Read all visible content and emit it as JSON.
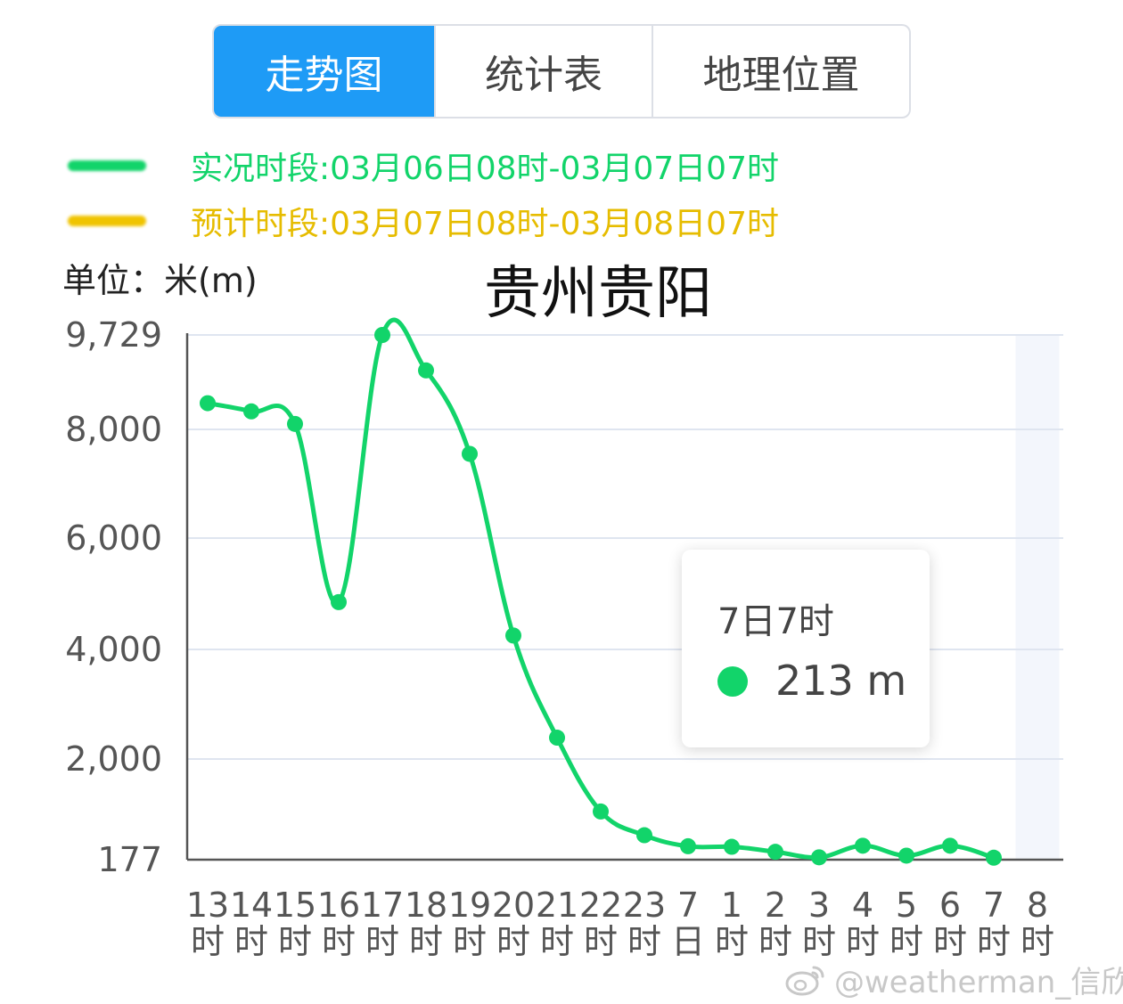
{
  "tabs": [
    {
      "label": "走势图",
      "active": true
    },
    {
      "label": "统计表",
      "active": false
    },
    {
      "label": "地理位置",
      "active": false
    }
  ],
  "legend": [
    {
      "label": "实况时段:03月06日08时-03月07日07时",
      "color": "#12d46a"
    },
    {
      "label": "预计时段:03月07日08时-03月08日07时",
      "color": "#f0c400"
    }
  ],
  "unit_label": "单位：米(m)",
  "city_title": "贵州贵阳",
  "tooltip": {
    "title": "7日7时",
    "value": "213 m",
    "color": "#12d46a"
  },
  "watermark": "@weatherman_信欣",
  "colors": {
    "actual_line": "#12d46a",
    "forecast_line": "#f0c400",
    "tab_active": "#1e9bf6",
    "grid": "#dfe5f0",
    "axis": "#555555",
    "highlight_band": "#f3f6fc"
  },
  "chart_data": {
    "type": "line",
    "title": "贵州贵阳",
    "ylabel": "单位：米(m)",
    "y_ticks": [
      "9,729",
      "8,000",
      "6,000",
      "4,000",
      "2,000",
      "177"
    ],
    "y_tick_values": [
      9729,
      8000,
      6000,
      4000,
      2000,
      177
    ],
    "ylim": [
      177,
      9729
    ],
    "grid": true,
    "highlighted_category_index": 19,
    "categories": [
      {
        "top": "13",
        "bottom": "时"
      },
      {
        "top": "14",
        "bottom": "时"
      },
      {
        "top": "15",
        "bottom": "时"
      },
      {
        "top": "16",
        "bottom": "时"
      },
      {
        "top": "17",
        "bottom": "时"
      },
      {
        "top": "18",
        "bottom": "时"
      },
      {
        "top": "19",
        "bottom": "时"
      },
      {
        "top": "20",
        "bottom": "时"
      },
      {
        "top": "21",
        "bottom": "时"
      },
      {
        "top": "22",
        "bottom": "时"
      },
      {
        "top": "23",
        "bottom": "时"
      },
      {
        "top": "7",
        "bottom": "日"
      },
      {
        "top": "1",
        "bottom": "时"
      },
      {
        "top": "2",
        "bottom": "时"
      },
      {
        "top": "3",
        "bottom": "时"
      },
      {
        "top": "4",
        "bottom": "时"
      },
      {
        "top": "5",
        "bottom": "时"
      },
      {
        "top": "6",
        "bottom": "时"
      },
      {
        "top": "7",
        "bottom": "时"
      },
      {
        "top": "8",
        "bottom": "时"
      }
    ],
    "series": [
      {
        "values": [
          8480,
          8330,
          8100,
          4850,
          9729,
          9080,
          7550,
          4250,
          2390,
          1050,
          620,
          420,
          410,
          320,
          220,
          430,
          250,
          430,
          213,
          null
        ]
      }
    ]
  }
}
